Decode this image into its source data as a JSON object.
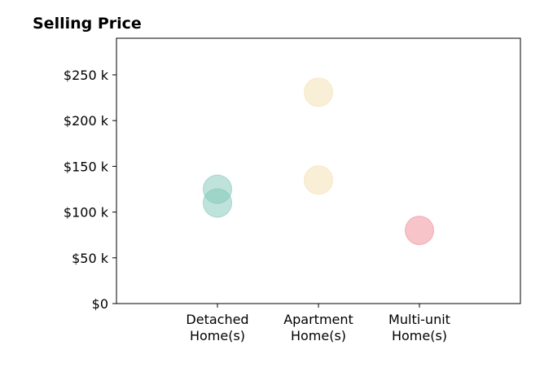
{
  "chart_data": {
    "type": "scatter",
    "title": "Selling Price",
    "xlabel": "",
    "ylabel": "",
    "categories": [
      [
        "Detached",
        "Home(s)"
      ],
      [
        "Apartment",
        "Home(s)"
      ],
      [
        "Multi-unit",
        "Home(s)"
      ]
    ],
    "xlim": [
      -1,
      3
    ],
    "ylim": [
      0,
      290000
    ],
    "yticks": [
      0,
      50000,
      100000,
      150000,
      200000,
      250000
    ],
    "ytick_labels": [
      "$0",
      "$50 k",
      "$100 k",
      "$150 k",
      "$200 k",
      "$250 k"
    ],
    "grid": false,
    "legend": false,
    "points": [
      {
        "category": 0,
        "y": 125000,
        "color": "#7fc8b8"
      },
      {
        "category": 0,
        "y": 110000,
        "color": "#7fc8b8"
      },
      {
        "category": 1,
        "y": 231000,
        "color": "#f3dfb0"
      },
      {
        "category": 1,
        "y": 135000,
        "color": "#f3dfb0"
      },
      {
        "category": 2,
        "y": 80000,
        "color": "#f08a94"
      }
    ]
  }
}
